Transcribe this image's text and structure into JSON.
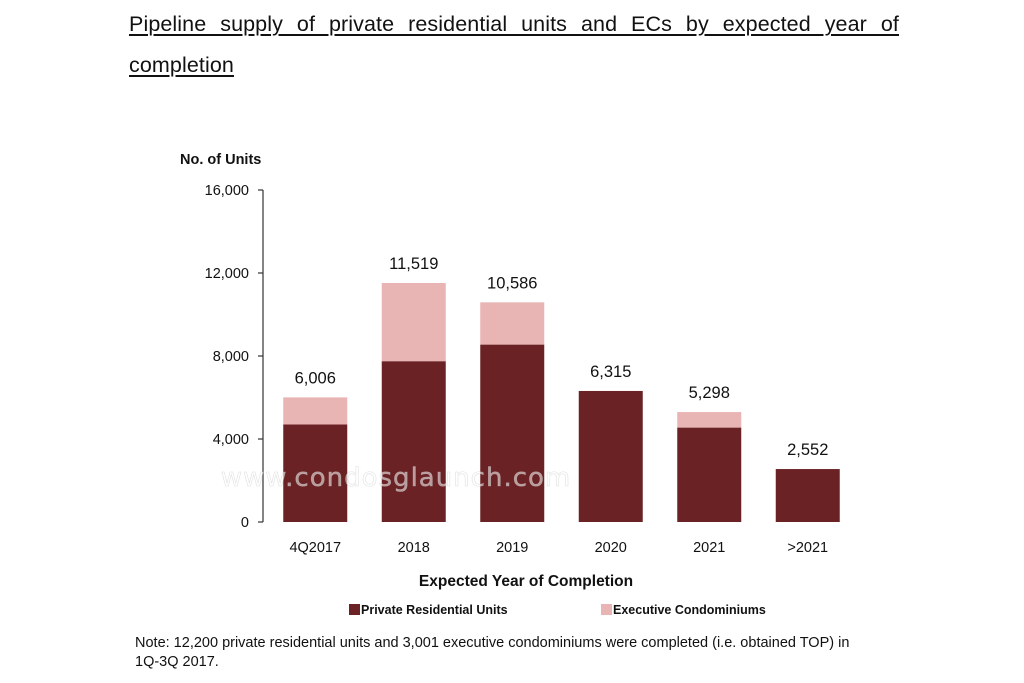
{
  "page": {
    "title": "Pipeline supply of private residential units and ECs by expected year of completion",
    "watermark": "www.condosglaunch.com",
    "note": "Note: 12,200 private residential units and 3,001 executive condominiums were completed (i.e. obtained TOP) in 1Q-3Q 2017."
  },
  "chart_data": {
    "type": "bar",
    "stacked": true,
    "title": "Pipeline supply of private residential units and ECs by expected year of completion",
    "ylabel": "No. of Units",
    "xlabel": "Expected Year of Completion",
    "ylim": [
      0,
      16000
    ],
    "yticks": [
      0,
      4000,
      8000,
      12000,
      16000
    ],
    "ytick_labels": [
      "0",
      "4,000",
      "8,000",
      "12,000",
      "16,000"
    ],
    "grid": false,
    "legend_position": "bottom",
    "categories": [
      "4Q2017",
      "2018",
      "2019",
      "2020",
      "2021",
      ">2021"
    ],
    "series": [
      {
        "name": "Private Residential Units",
        "color": "#6b2224",
        "values": [
          4700,
          7750,
          8550,
          6315,
          4550,
          2552
        ]
      },
      {
        "name": "Executive Condominiums",
        "color": "#e8b4b4",
        "values": [
          1306,
          3769,
          2036,
          0,
          748,
          0
        ]
      }
    ],
    "totals": [
      6006,
      11519,
      10586,
      6315,
      5298,
      2552
    ],
    "total_labels": [
      "6,006",
      "11,519",
      "10,586",
      "6,315",
      "5,298",
      "2,552"
    ]
  }
}
